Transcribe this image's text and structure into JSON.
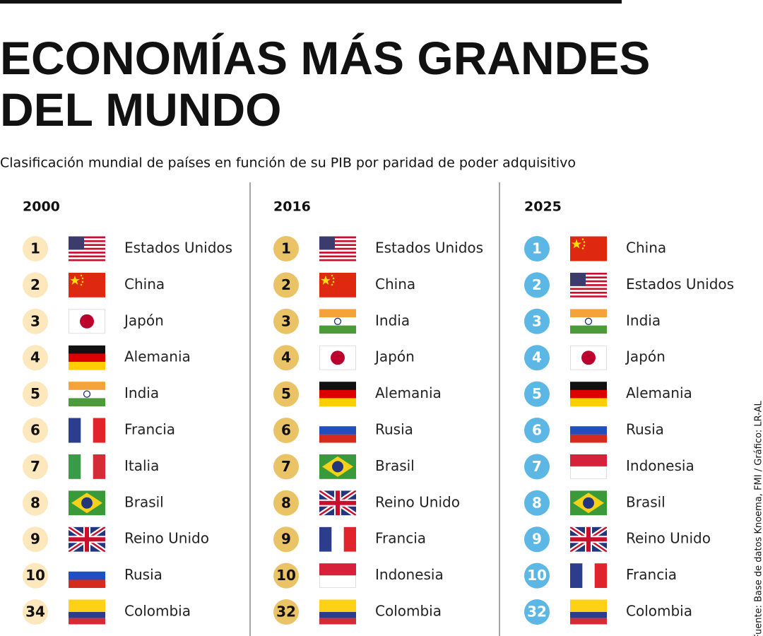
{
  "header": {
    "title": [
      "ECONOMÍAS MÁS GRANDES",
      "DEL MUNDO"
    ],
    "subtitle": "Clasificación mundial de países en función de su PIB por paridad de poder adquisitivo"
  },
  "columns": [
    {
      "year": 2000,
      "rows": [
        {
          "rank": 1,
          "country": "Estados Unidos"
        },
        {
          "rank": 2,
          "country": "China"
        },
        {
          "rank": 3,
          "country": "Japón"
        },
        {
          "rank": 4,
          "country": "Alemania"
        },
        {
          "rank": 5,
          "country": "India"
        },
        {
          "rank": 6,
          "country": "Francia"
        },
        {
          "rank": 7,
          "country": "Italia"
        },
        {
          "rank": 8,
          "country": "Brasil"
        },
        {
          "rank": 9,
          "country": "Reino Unido"
        },
        {
          "rank": 10,
          "country": "Rusia"
        },
        {
          "rank": 34,
          "country": "Colombia"
        }
      ]
    },
    {
      "year": 2016,
      "rows": [
        {
          "rank": 1,
          "country": "Estados Unidos"
        },
        {
          "rank": 2,
          "country": "China"
        },
        {
          "rank": 3,
          "country": "India"
        },
        {
          "rank": 4,
          "country": "Japón"
        },
        {
          "rank": 5,
          "country": "Alemania"
        },
        {
          "rank": 6,
          "country": "Rusia"
        },
        {
          "rank": 7,
          "country": "Brasil"
        },
        {
          "rank": 8,
          "country": "Reino Unido"
        },
        {
          "rank": 9,
          "country": "Francia"
        },
        {
          "rank": 10,
          "country": "Indonesia"
        },
        {
          "rank": 32,
          "country": "Colombia"
        }
      ]
    },
    {
      "year": 2025,
      "rows": [
        {
          "rank": 1,
          "country": "China"
        },
        {
          "rank": 2,
          "country": "Estados Unidos"
        },
        {
          "rank": 3,
          "country": "India"
        },
        {
          "rank": 4,
          "country": "Japón"
        },
        {
          "rank": 5,
          "country": "Alemania"
        },
        {
          "rank": 6,
          "country": "Rusia"
        },
        {
          "rank": 7,
          "country": "Indonesia"
        },
        {
          "rank": 8,
          "country": "Brasil"
        },
        {
          "rank": 9,
          "country": "Reino Unido"
        },
        {
          "rank": 10,
          "country": "Francia"
        },
        {
          "rank": 32,
          "country": "Colombia"
        }
      ]
    }
  ],
  "source": "Fuente: Base de datos Knoema, FMI / Gráfico: LR-AL"
}
